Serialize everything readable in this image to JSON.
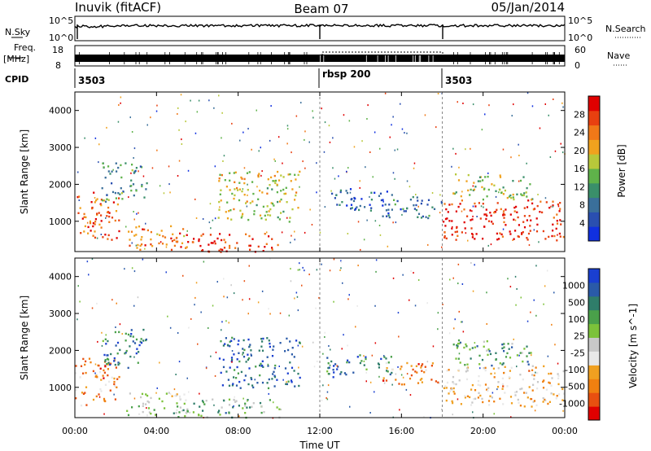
{
  "header": {
    "station": "Inuvik (fitACF)",
    "beam": "Beam 07",
    "date": "05/Jan/2014"
  },
  "top_panel": {
    "nsky_label": "N.Sky",
    "nsearch_label": "N.Search",
    "ytick_top": "10^5",
    "ytick_bottom": "10^0",
    "freq_label_1": "Freq.",
    "freq_label_2": "[MHz]",
    "nave_label": "Nave",
    "freq_ticks": [
      "18",
      "8"
    ],
    "nave_ticks": [
      "60",
      "0"
    ],
    "cpid_label": "CPID",
    "cpid_segments": [
      {
        "label": "3503",
        "start_hour": 0.0,
        "end_hour": 12.0
      },
      {
        "label": "rbsp 200",
        "start_hour": 12.0,
        "end_hour": 18.0
      },
      {
        "label": "3503",
        "start_hour": 18.0,
        "end_hour": 24.0
      }
    ]
  },
  "colors": {
    "power_scale": [
      "#1030e0",
      "#2a4fb0",
      "#3a6f9a",
      "#3a8f6a",
      "#5fb24a",
      "#b8c83a",
      "#f0a21e",
      "#f07818",
      "#e84010",
      "#e00000"
    ],
    "velocity_scale": [
      "#1a3fd0",
      "#2a5aa8",
      "#2f7d6a",
      "#4aa04a",
      "#7cc23a",
      "#c8c8c8",
      "#e8e8e8",
      "#f0a020",
      "#f08010",
      "#e85010",
      "#e00000"
    ]
  },
  "chart_data": [
    {
      "type": "heatmap",
      "panel": "power",
      "ylabel": "Slant Range [km]",
      "ylim": [
        180,
        4500
      ],
      "yticks": [
        "1000",
        "2000",
        "3000",
        "4000"
      ],
      "xlim": [
        0,
        24
      ],
      "xticks": [
        "00:00",
        "04:00",
        "08:00",
        "12:00",
        "16:00",
        "20:00",
        "00:00"
      ],
      "colorbar_label": "Power [dB]",
      "colorbar_ticks": [
        "4",
        "8",
        "12",
        "16",
        "20",
        "24",
        "28"
      ],
      "regions": [
        {
          "t0": 0.0,
          "t1": 2.2,
          "r0": 500,
          "r1": 1800,
          "level": 0.8
        },
        {
          "t0": 1.3,
          "t1": 3.5,
          "r0": 1500,
          "r1": 2600,
          "level": 0.35
        },
        {
          "t0": 2.5,
          "t1": 5.5,
          "r0": 250,
          "r1": 900,
          "level": 0.75
        },
        {
          "t0": 4.8,
          "t1": 10.0,
          "r0": 180,
          "r1": 700,
          "level": 0.9
        },
        {
          "t0": 7.0,
          "t1": 11.0,
          "r0": 1000,
          "r1": 2400,
          "level": 0.55
        },
        {
          "t0": 12.3,
          "t1": 15.5,
          "r0": 1300,
          "r1": 1900,
          "level": 0.2
        },
        {
          "t0": 15.0,
          "t1": 18.0,
          "r0": 1100,
          "r1": 1700,
          "level": 0.25
        },
        {
          "t0": 18.0,
          "t1": 24.0,
          "r0": 500,
          "r1": 1600,
          "level": 0.92
        },
        {
          "t0": 18.5,
          "t1": 22.5,
          "r0": 1600,
          "r1": 2300,
          "level": 0.5
        }
      ]
    },
    {
      "type": "heatmap",
      "panel": "velocity",
      "ylabel": "Slant Range [km]",
      "ylim": [
        180,
        4500
      ],
      "yticks": [
        "1000",
        "2000",
        "3000",
        "4000"
      ],
      "xlim": [
        0,
        24
      ],
      "xticks": [
        "00:00",
        "04:00",
        "08:00",
        "12:00",
        "16:00",
        "20:00",
        "00:00"
      ],
      "xlabel": "Time UT",
      "colorbar_label": "Velocity [m s^-1]",
      "colorbar_ticks": [
        "1000",
        "500",
        "100",
        "25",
        "-25",
        "-100",
        "-500",
        "-1000"
      ],
      "regions": [
        {
          "t0": 0.0,
          "t1": 2.2,
          "r0": 500,
          "r1": 1800,
          "level": 0.75
        },
        {
          "t0": 1.3,
          "t1": 3.5,
          "r0": 1500,
          "r1": 2600,
          "level": 0.2
        },
        {
          "t0": 2.5,
          "t1": 5.5,
          "r0": 250,
          "r1": 900,
          "level": 0.5
        },
        {
          "t0": 4.8,
          "t1": 10.0,
          "r0": 180,
          "r1": 700,
          "level": 0.35
        },
        {
          "t0": 7.0,
          "t1": 11.0,
          "r0": 1000,
          "r1": 2400,
          "level": 0.15
        },
        {
          "t0": 12.3,
          "t1": 15.5,
          "r0": 1300,
          "r1": 1900,
          "level": 0.2
        },
        {
          "t0": 15.0,
          "t1": 18.0,
          "r0": 1100,
          "r1": 1700,
          "level": 0.75
        },
        {
          "t0": 18.0,
          "t1": 24.0,
          "r0": 500,
          "r1": 1600,
          "level": 0.65
        },
        {
          "t0": 18.5,
          "t1": 22.5,
          "r0": 1600,
          "r1": 2300,
          "level": 0.3
        }
      ]
    }
  ]
}
